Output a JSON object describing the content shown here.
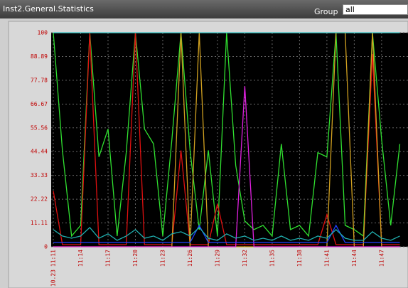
{
  "header": {
    "title": "Inst2.General.Statistics",
    "group_label": "Group",
    "group_value": "all"
  },
  "chart_data": {
    "type": "line",
    "date_label": "10.23",
    "categories": [
      "11:11",
      null,
      null,
      "11:14",
      null,
      null,
      "11:17",
      null,
      null,
      "11:20",
      null,
      null,
      "11:23",
      null,
      null,
      "11:26",
      null,
      null,
      "11:29",
      null,
      null,
      "11:32",
      null,
      null,
      "11:35",
      null,
      null,
      "11:38",
      null,
      null,
      "11:41",
      null,
      null,
      "11:44",
      null,
      null,
      "11:47",
      null,
      null
    ],
    "ylim": [
      0,
      100
    ],
    "yticks": [
      0,
      11.11,
      22.22,
      33.33,
      44.44,
      55.56,
      66.67,
      77.78,
      88.89,
      100
    ],
    "grid": true,
    "series": [
      {
        "color": "#30e030",
        "values": [
          100,
          45,
          5,
          10,
          100,
          42,
          55,
          5,
          44,
          100,
          55,
          48,
          5,
          50,
          100,
          45,
          8,
          45,
          5,
          100,
          38,
          12,
          8,
          10,
          5,
          48,
          8,
          10,
          5,
          44,
          42,
          100,
          10,
          8,
          5,
          100,
          50,
          10,
          48
        ]
      },
      {
        "color": "#e01010",
        "values": [
          26,
          1,
          1,
          1,
          100,
          1,
          1,
          1,
          1,
          100,
          1,
          1,
          1,
          1,
          45,
          1,
          1,
          1,
          20,
          1,
          1,
          1,
          1,
          1,
          1,
          1,
          1,
          1,
          1,
          1,
          15,
          1,
          1,
          1,
          1,
          90,
          1,
          1,
          1
        ]
      },
      {
        "color": "#d0a020",
        "values": [
          0,
          0,
          0,
          0,
          0,
          0,
          0,
          0,
          0,
          0,
          0,
          0,
          0,
          0,
          100,
          0,
          100,
          0,
          0,
          0,
          0,
          0,
          0,
          0,
          0,
          0,
          0,
          0,
          0,
          0,
          0,
          100,
          100,
          0,
          0,
          100,
          0,
          0,
          0
        ]
      },
      {
        "color": "#e020e0",
        "values": [
          0,
          0,
          0,
          0,
          0,
          0,
          0,
          0,
          0,
          0,
          0,
          0,
          0,
          0,
          0,
          0,
          0,
          0,
          0,
          0,
          0,
          75,
          0,
          0,
          0,
          0,
          0,
          0,
          0,
          0,
          0,
          0,
          0,
          0,
          0,
          0,
          0,
          0,
          0
        ]
      },
      {
        "color": "#2040ff",
        "values": [
          2,
          2,
          2,
          2,
          2,
          2,
          2,
          2,
          2,
          2,
          2,
          2,
          2,
          2,
          2,
          2,
          10,
          2,
          2,
          2,
          2,
          2,
          2,
          2,
          2,
          2,
          2,
          2,
          2,
          2,
          2,
          10,
          2,
          2,
          2,
          2,
          2,
          2,
          2
        ]
      },
      {
        "color": "#20b0b0",
        "values": [
          8,
          5,
          4,
          5,
          9,
          4,
          6,
          3,
          5,
          8,
          4,
          5,
          3,
          6,
          7,
          5,
          9,
          4,
          3,
          6,
          4,
          5,
          3,
          4,
          3,
          5,
          3,
          4,
          3,
          5,
          4,
          8,
          4,
          3,
          3,
          7,
          4,
          3,
          5
        ]
      },
      {
        "color": "#40d0d0",
        "values": [
          100,
          100,
          100,
          100,
          100,
          100,
          100,
          100,
          100,
          100,
          100,
          100,
          100,
          100,
          100,
          100,
          100,
          100,
          100,
          100,
          100,
          100,
          100,
          100,
          100,
          100,
          100,
          100,
          100,
          100,
          100,
          100,
          100,
          100,
          100,
          100,
          100,
          100,
          100
        ]
      }
    ]
  }
}
